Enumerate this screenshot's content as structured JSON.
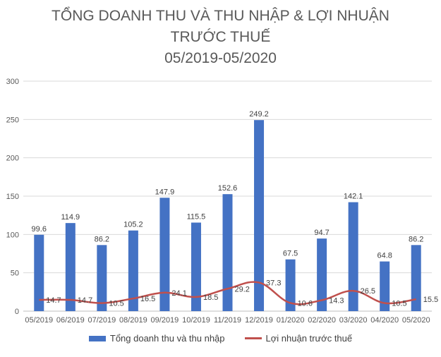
{
  "chart_data": {
    "type": "bar",
    "title_lines": [
      "TỔNG DOANH THU VÀ THU NHẬP & LỢI NHUẬN",
      "TRƯỚC THUẾ",
      "05/2019-05/2020"
    ],
    "categories": [
      "05/2019",
      "06/2019",
      "07/2019",
      "08/2019",
      "09/2019",
      "10/2019",
      "11/2019",
      "12/2019",
      "01/2020",
      "02/2020",
      "03/2020",
      "04/2020",
      "05/2020"
    ],
    "series": [
      {
        "name": "Tổng doanh thu và thu nhập",
        "type": "bar",
        "color": "#4472C4",
        "values": [
          99.6,
          114.9,
          86.2,
          105.2,
          147.9,
          115.5,
          152.6,
          249.2,
          67.5,
          94.7,
          142.1,
          64.8,
          86.2
        ]
      },
      {
        "name": "Lợi nhuận  trước thuế",
        "type": "line",
        "color": "#C0504D",
        "values": [
          14.7,
          14.7,
          10.5,
          16.5,
          24.1,
          18.5,
          29.2,
          37.3,
          10.6,
          14.3,
          26.5,
          10.5,
          15.5
        ]
      }
    ],
    "yticks": [
      0,
      50,
      100,
      150,
      200,
      250,
      300
    ],
    "ylim": [
      0,
      300
    ],
    "grid": true,
    "legend_position": "bottom"
  }
}
